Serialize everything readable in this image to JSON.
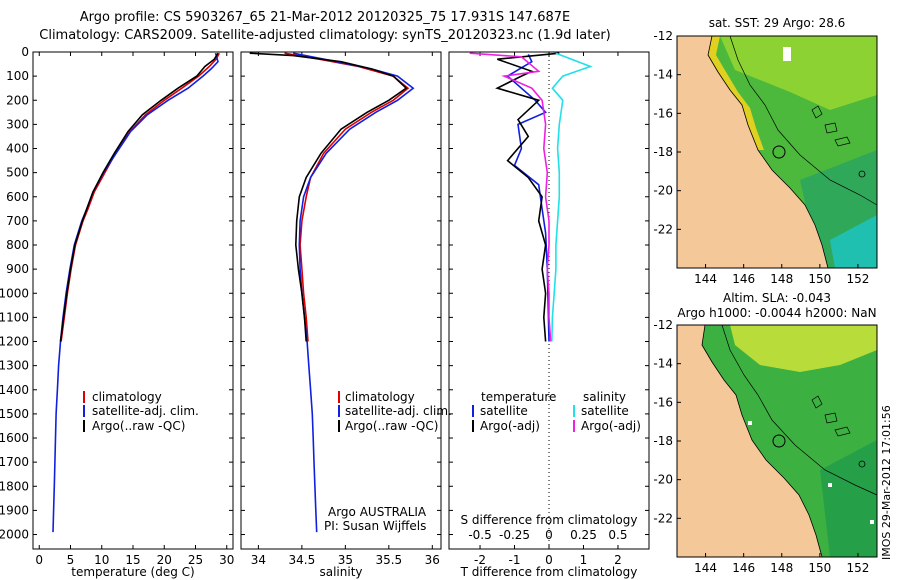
{
  "title_line1": "Argo profile: CS 5903267_65 21-Mar-2012 20120325_75 17.931S 147.687E",
  "title_line2": "Climatology: CARS2009. Satellite-adjusted climatology: synTS_20120323.nc (1.9d later)",
  "stamp": "IMOS 29-Mar-2012 17:01:56",
  "colors": {
    "clim": "#e00000",
    "sat": "#1020e0",
    "argo": "#000000",
    "sal_sat": "#20e0e8",
    "sal_argo": "#f020e0",
    "land": "#f5c89a"
  },
  "chart_data": [
    {
      "id": "temperature",
      "type": "line",
      "xlabel": "temperature (deg C)",
      "xlim": [
        -1,
        31
      ],
      "xticks": [
        0,
        5,
        10,
        15,
        20,
        25,
        30
      ],
      "ylim": [
        0,
        2060
      ],
      "yticks": [
        0,
        100,
        200,
        300,
        400,
        500,
        600,
        700,
        800,
        900,
        1000,
        1100,
        1200,
        1300,
        1400,
        1500,
        1600,
        1700,
        1800,
        1900,
        2000
      ],
      "legend": [
        "climatology",
        "satellite-adj. clim.",
        "Argo(..raw -QC)"
      ],
      "series": [
        {
          "name": "climatology",
          "color": "#e00000",
          "x_max_depth": 1200,
          "points": [
            [
              28.8,
              5
            ],
            [
              28.3,
              30
            ],
            [
              27.2,
              60
            ],
            [
              25.5,
              100
            ],
            [
              22.8,
              150
            ],
            [
              20,
              200
            ],
            [
              17,
              260
            ],
            [
              14.5,
              330
            ],
            [
              12.2,
              420
            ],
            [
              10.5,
              500
            ],
            [
              8.8,
              580
            ],
            [
              7.8,
              650
            ],
            [
              7,
              700
            ],
            [
              5.8,
              800
            ],
            [
              5.1,
              900
            ],
            [
              4.5,
              1000
            ],
            [
              4,
              1100
            ],
            [
              3.5,
              1200
            ]
          ]
        },
        {
          "name": "satellite-adj. clim.",
          "color": "#1020e0",
          "points": [
            [
              28.2,
              5
            ],
            [
              28.6,
              40
            ],
            [
              27.5,
              70
            ],
            [
              26.2,
              100
            ],
            [
              23.8,
              150
            ],
            [
              20.6,
              200
            ],
            [
              17.3,
              260
            ],
            [
              14.6,
              330
            ],
            [
              12.3,
              420
            ],
            [
              10.3,
              500
            ],
            [
              8.6,
              580
            ],
            [
              7.6,
              650
            ],
            [
              6.8,
              700
            ],
            [
              5.6,
              800
            ],
            [
              4.9,
              900
            ],
            [
              4.3,
              1000
            ],
            [
              3.8,
              1100
            ],
            [
              3.4,
              1200
            ],
            [
              3.1,
              1300
            ],
            [
              2.9,
              1400
            ],
            [
              2.7,
              1500
            ],
            [
              2.6,
              1600
            ],
            [
              2.5,
              1700
            ],
            [
              2.4,
              1800
            ],
            [
              2.3,
              1900
            ],
            [
              2.2,
              1990
            ]
          ]
        },
        {
          "name": "Argo(..raw -QC)",
          "color": "#000000",
          "points": [
            [
              28.6,
              5
            ],
            [
              28,
              30
            ],
            [
              26.5,
              60
            ],
            [
              25.2,
              100
            ],
            [
              22.2,
              150
            ],
            [
              19.5,
              200
            ],
            [
              16.5,
              260
            ],
            [
              14.2,
              330
            ],
            [
              12,
              420
            ],
            [
              10.2,
              500
            ],
            [
              8.6,
              580
            ],
            [
              7.6,
              650
            ],
            [
              6.9,
              700
            ],
            [
              5.7,
              800
            ],
            [
              5,
              900
            ],
            [
              4.4,
              1000
            ],
            [
              3.9,
              1100
            ],
            [
              3.4,
              1200
            ]
          ]
        }
      ]
    },
    {
      "id": "salinity",
      "type": "line",
      "xlabel": "salinity",
      "xlim": [
        33.8,
        36.1
      ],
      "xticks": [
        34,
        34.5,
        35,
        35.5,
        36
      ],
      "ylim": [
        0,
        2060
      ],
      "legend": [
        "climatology",
        "satellite-adj. clim.",
        "Argo(..raw -QC)"
      ],
      "footer": [
        "Argo AUSTRALIA",
        "PI: Susan Wijffels"
      ],
      "series": [
        {
          "name": "climatology",
          "color": "#e00000",
          "points": [
            [
              34.3,
              5
            ],
            [
              34.7,
              30
            ],
            [
              35.15,
              60
            ],
            [
              35.55,
              100
            ],
            [
              35.72,
              150
            ],
            [
              35.55,
              200
            ],
            [
              35.3,
              250
            ],
            [
              35.0,
              320
            ],
            [
              34.75,
              420
            ],
            [
              34.6,
              520
            ],
            [
              34.55,
              600
            ],
            [
              34.5,
              700
            ],
            [
              34.48,
              800
            ],
            [
              34.5,
              900
            ],
            [
              34.52,
              1000
            ],
            [
              34.55,
              1100
            ],
            [
              34.57,
              1200
            ]
          ]
        },
        {
          "name": "satellite-adj. clim.",
          "color": "#1020e0",
          "points": [
            [
              34.4,
              5
            ],
            [
              34.9,
              40
            ],
            [
              35.3,
              70
            ],
            [
              35.6,
              100
            ],
            [
              35.78,
              150
            ],
            [
              35.6,
              200
            ],
            [
              35.35,
              250
            ],
            [
              35.05,
              320
            ],
            [
              34.78,
              420
            ],
            [
              34.6,
              520
            ],
            [
              34.52,
              600
            ],
            [
              34.48,
              700
            ],
            [
              34.47,
              800
            ],
            [
              34.48,
              900
            ],
            [
              34.5,
              1000
            ],
            [
              34.53,
              1100
            ],
            [
              34.56,
              1200
            ],
            [
              34.58,
              1300
            ],
            [
              34.6,
              1400
            ],
            [
              34.62,
              1500
            ],
            [
              34.63,
              1600
            ],
            [
              34.64,
              1700
            ],
            [
              34.65,
              1800
            ],
            [
              34.66,
              1900
            ],
            [
              34.67,
              1990
            ]
          ]
        },
        {
          "name": "Argo(..raw -QC)",
          "color": "#000000",
          "points": [
            [
              33.9,
              5
            ],
            [
              34.4,
              15
            ],
            [
              34.95,
              40
            ],
            [
              35.3,
              70
            ],
            [
              35.55,
              100
            ],
            [
              35.7,
              150
            ],
            [
              35.5,
              200
            ],
            [
              35.25,
              250
            ],
            [
              34.95,
              320
            ],
            [
              34.72,
              420
            ],
            [
              34.55,
              520
            ],
            [
              34.47,
              600
            ],
            [
              34.44,
              700
            ],
            [
              34.43,
              800
            ],
            [
              34.46,
              900
            ],
            [
              34.5,
              1000
            ],
            [
              34.53,
              1100
            ],
            [
              34.55,
              1200
            ]
          ]
        }
      ]
    },
    {
      "id": "difference",
      "type": "line",
      "xlabel": "T difference from climatology",
      "xlabel2": "S difference from climatology",
      "xlim": [
        -2.9,
        2.9
      ],
      "xticks": [
        -2,
        -1,
        0,
        1,
        2
      ],
      "xticks_s": [
        "-0.5",
        "-0.25",
        "0",
        "0.25",
        "0.5"
      ],
      "ylim": [
        0,
        2060
      ],
      "legend": {
        "temperature": "temperature",
        "salinity": "salinity",
        "satellite": "satellite",
        "argo": "Argo(-adj)"
      },
      "series": [
        {
          "name": "temperature satellite",
          "color": "#1020e0",
          "points": [
            [
              -0.6,
              10
            ],
            [
              -0.5,
              40
            ],
            [
              -1.2,
              100
            ],
            [
              -0.4,
              200
            ],
            [
              -0.1,
              250
            ],
            [
              -0.9,
              300
            ],
            [
              -0.8,
              400
            ],
            [
              -1.0,
              470
            ],
            [
              -0.3,
              550
            ],
            [
              -0.2,
              650
            ],
            [
              -0.1,
              750
            ],
            [
              -0.05,
              900
            ],
            [
              0,
              1200
            ]
          ]
        },
        {
          "name": "temperature Argo",
          "color": "#000000",
          "points": [
            [
              0.3,
              5
            ],
            [
              -1.5,
              30
            ],
            [
              -0.5,
              80
            ],
            [
              -0.8,
              100
            ],
            [
              -1.5,
              150
            ],
            [
              -0.3,
              200
            ],
            [
              -0.9,
              280
            ],
            [
              -0.6,
              350
            ],
            [
              -1.2,
              450
            ],
            [
              -0.6,
              520
            ],
            [
              -0.2,
              600
            ],
            [
              -0.3,
              700
            ],
            [
              -0.1,
              800
            ],
            [
              -0.2,
              900
            ],
            [
              -0.1,
              1000
            ],
            [
              -0.15,
              1100
            ],
            [
              -0.1,
              1200
            ]
          ]
        },
        {
          "name": "salinity satellite",
          "color": "#20e0e8",
          "points": [
            [
              0.2,
              5
            ],
            [
              1.2,
              60
            ],
            [
              0.4,
              100
            ],
            [
              0.1,
              150
            ],
            [
              0.4,
              200
            ],
            [
              0.3,
              300
            ],
            [
              0.25,
              400
            ],
            [
              0.3,
              500
            ],
            [
              0.3,
              600
            ],
            [
              0.25,
              700
            ],
            [
              0.2,
              800
            ],
            [
              0.2,
              900
            ],
            [
              0.15,
              1000
            ],
            [
              0.1,
              1100
            ],
            [
              0.08,
              1200
            ]
          ]
        },
        {
          "name": "salinity Argo",
          "color": "#f020e0",
          "points": [
            [
              -2.3,
              5
            ],
            [
              -0.8,
              20
            ],
            [
              -0.3,
              80
            ],
            [
              -1.3,
              100
            ],
            [
              -0.5,
              150
            ],
            [
              -0.2,
              200
            ],
            [
              -0.1,
              300
            ],
            [
              -0.15,
              400
            ],
            [
              -0.05,
              500
            ],
            [
              -0.1,
              600
            ],
            [
              0,
              700
            ],
            [
              0,
              800
            ],
            [
              -0.05,
              900
            ],
            [
              0,
              1000
            ],
            [
              0,
              1100
            ],
            [
              0.05,
              1200
            ]
          ]
        }
      ]
    },
    {
      "id": "map_sst",
      "type": "heatmap",
      "title": "sat. SST: 29 Argo: 28.6",
      "xticks": [
        "144",
        "146",
        "148",
        "150",
        "152"
      ],
      "yticks": [
        "-12",
        "-14",
        "-16",
        "-18",
        "-20",
        "-22"
      ],
      "xlim": [
        142.5,
        153
      ],
      "ylim": [
        -24,
        -12
      ],
      "argo_position": [
        147.687,
        -17.931
      ]
    },
    {
      "id": "map_sla",
      "type": "heatmap",
      "title_line1": "Altim. SLA: -0.043",
      "title_line2": "Argo h1000: -0.0044 h2000: NaN",
      "xticks": [
        "144",
        "146",
        "148",
        "150",
        "152"
      ],
      "yticks": [
        "-12",
        "-14",
        "-16",
        "-18",
        "-20",
        "-22"
      ],
      "xlim": [
        142.5,
        153
      ],
      "ylim": [
        -24,
        -12
      ],
      "argo_position": [
        147.687,
        -17.931
      ]
    }
  ]
}
